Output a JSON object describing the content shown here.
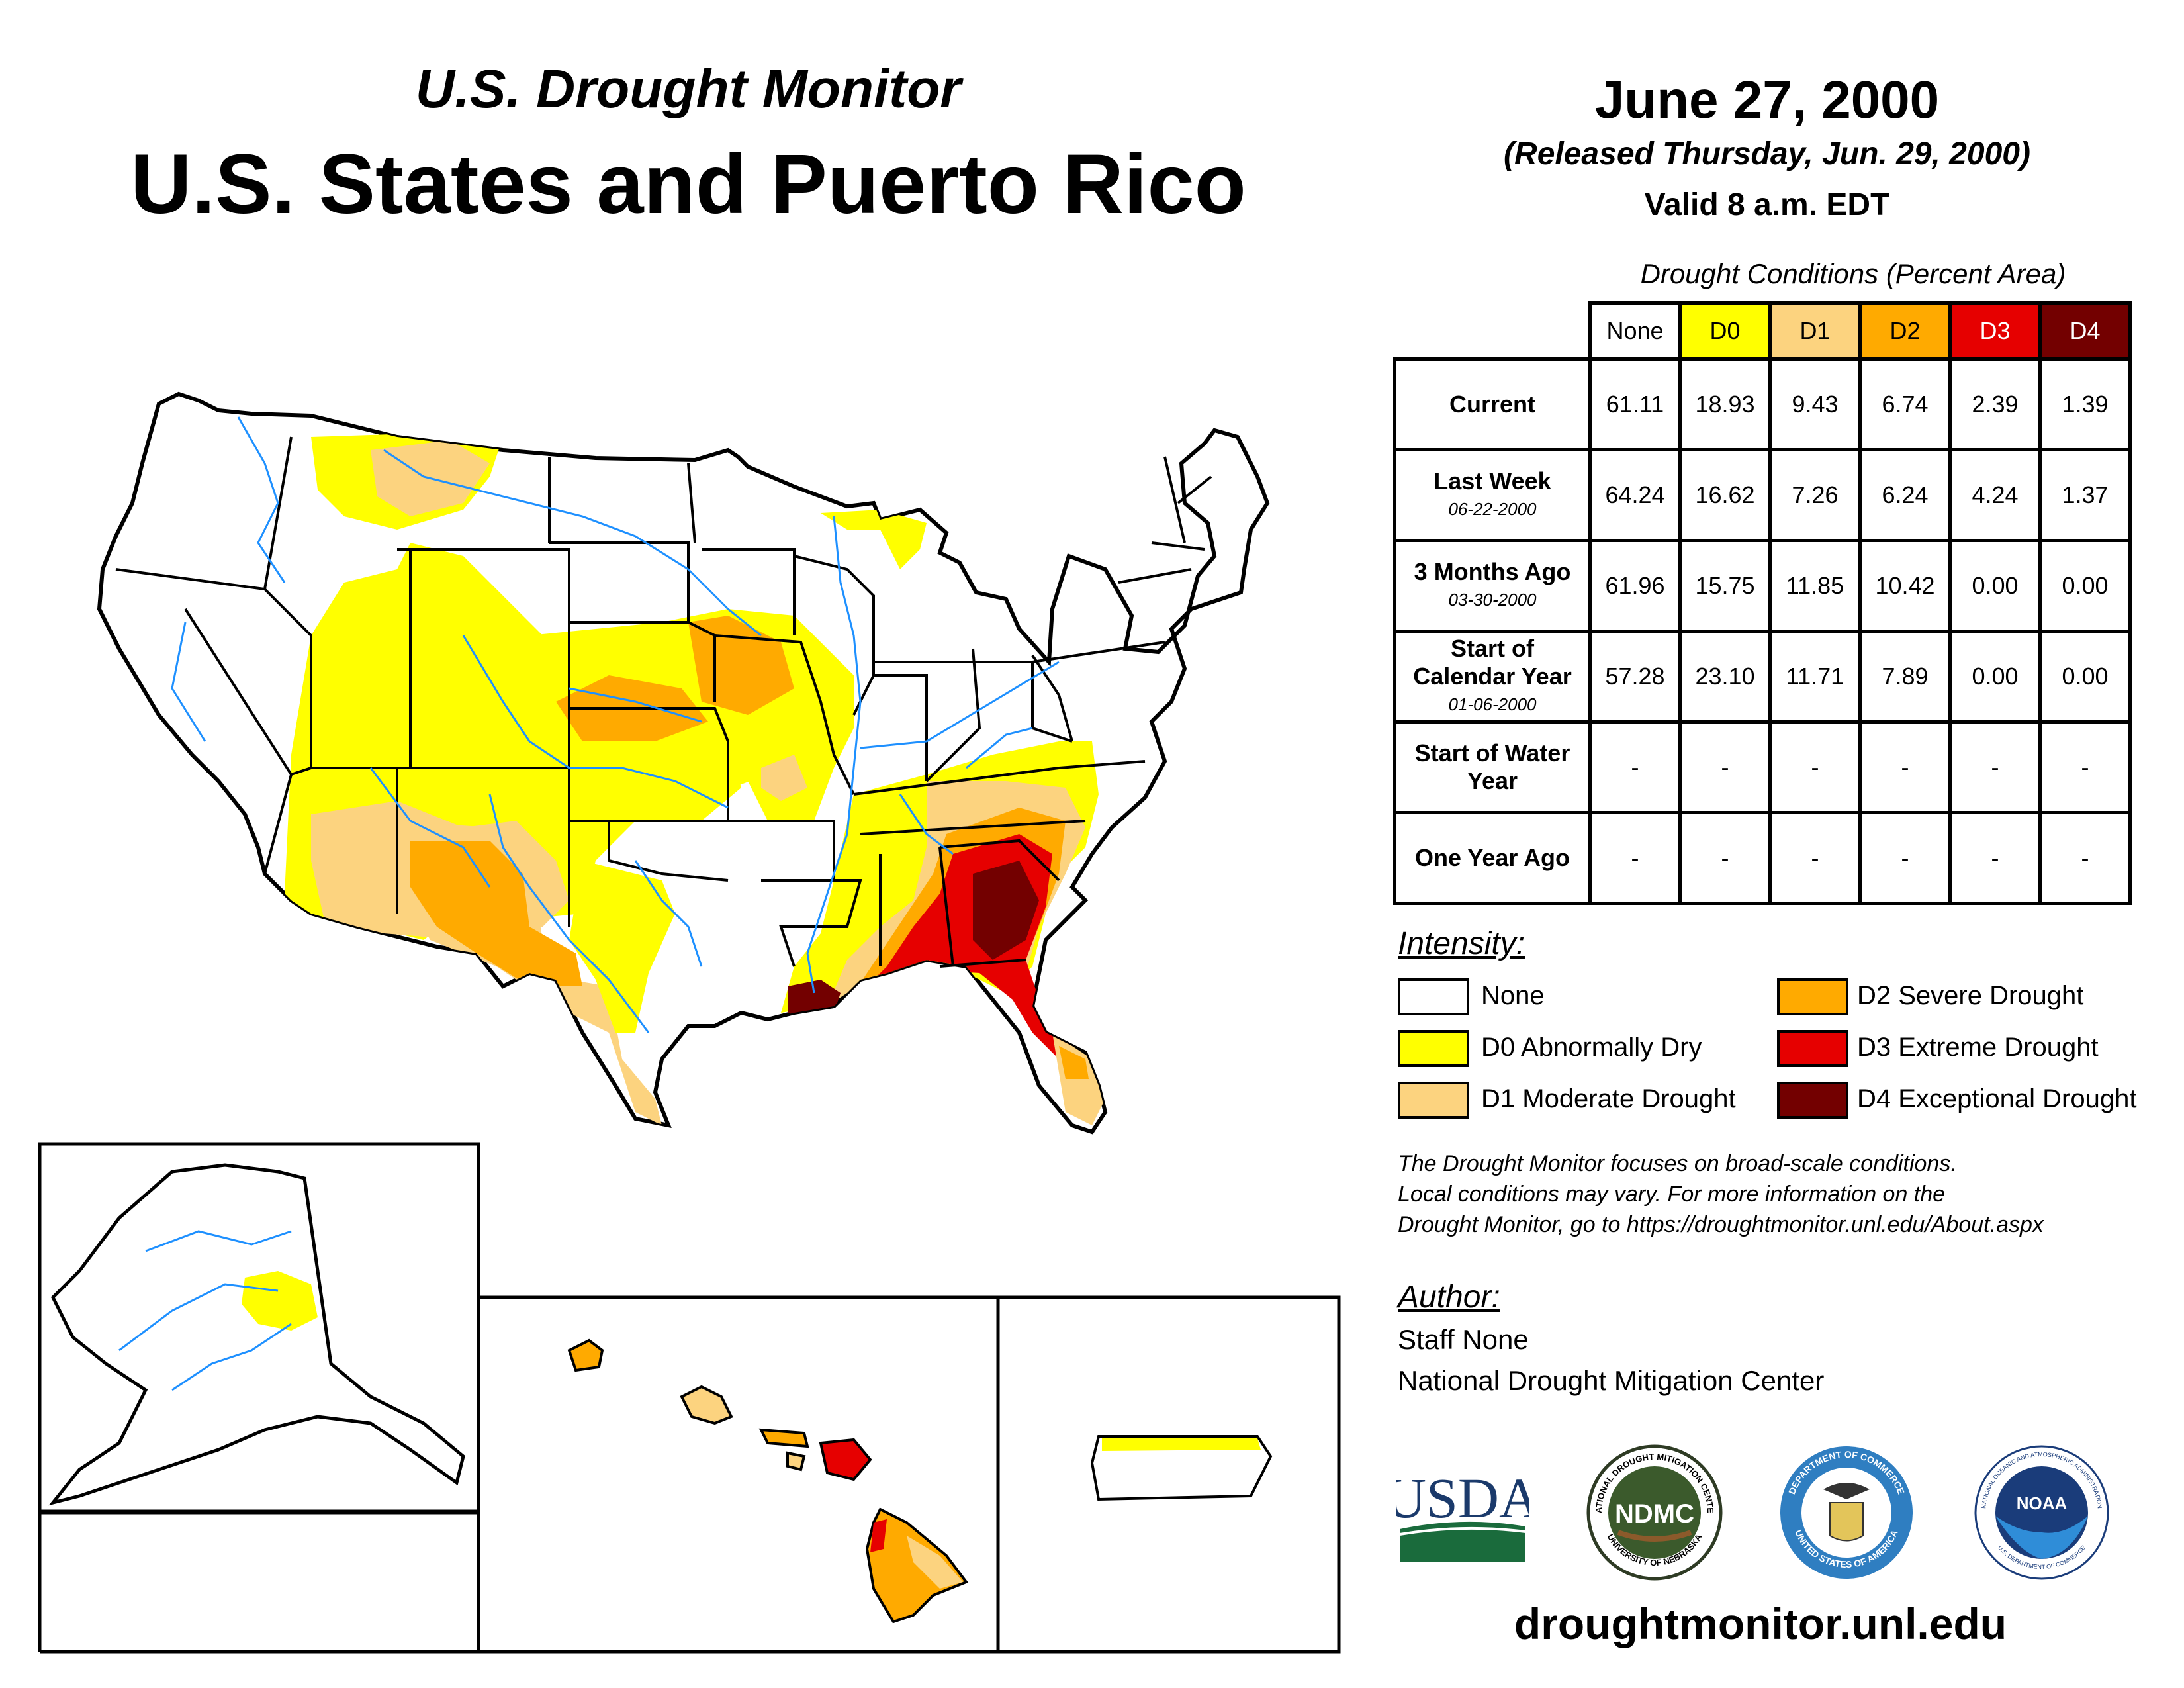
{
  "header": {
    "subtitle": "U.S. Drought Monitor",
    "title": "U.S. States and Puerto Rico",
    "date": "June 27, 2000",
    "released": "(Released Thursday, Jun. 29, 2000)",
    "valid": "Valid 8 a.m. EDT"
  },
  "table": {
    "caption": "Drought Conditions (Percent Area)",
    "columns": [
      "None",
      "D0",
      "D1",
      "D2",
      "D3",
      "D4"
    ],
    "column_colors": [
      "#ffffff",
      "#ffff00",
      "#fcd37f",
      "#ffaa00",
      "#e60000",
      "#730000"
    ],
    "rows": [
      {
        "label": "Current",
        "date": "",
        "values": [
          "61.11",
          "18.93",
          "9.43",
          "6.74",
          "2.39",
          "1.39"
        ]
      },
      {
        "label": "Last Week",
        "date": "06-22-2000",
        "values": [
          "64.24",
          "16.62",
          "7.26",
          "6.24",
          "4.24",
          "1.37"
        ]
      },
      {
        "label": "3 Months Ago",
        "date": "03-30-2000",
        "values": [
          "61.96",
          "15.75",
          "11.85",
          "10.42",
          "0.00",
          "0.00"
        ]
      },
      {
        "label": "Start of Calendar Year",
        "date": "01-06-2000",
        "values": [
          "57.28",
          "23.10",
          "11.71",
          "7.89",
          "0.00",
          "0.00"
        ]
      },
      {
        "label": "Start of Water Year",
        "date": "",
        "values": [
          "-",
          "-",
          "-",
          "-",
          "-",
          "-"
        ]
      },
      {
        "label": "One Year Ago",
        "date": "",
        "values": [
          "-",
          "-",
          "-",
          "-",
          "-",
          "-"
        ]
      }
    ]
  },
  "legend": {
    "title": "Intensity:",
    "items": [
      {
        "label": "None",
        "color": "#ffffff"
      },
      {
        "label": "D0 Abnormally Dry",
        "color": "#ffff00"
      },
      {
        "label": "D1 Moderate Drought",
        "color": "#fcd37f"
      },
      {
        "label": "D2 Severe Drought",
        "color": "#ffaa00"
      },
      {
        "label": "D3 Extreme Drought",
        "color": "#e60000"
      },
      {
        "label": "D4 Exceptional Drought",
        "color": "#730000"
      }
    ]
  },
  "note": {
    "line1": "The Drought Monitor focuses on broad-scale conditions.",
    "line2": "Local conditions may vary. For more information on the",
    "line3": "Drought Monitor, go to https://droughtmonitor.unl.edu/About.aspx"
  },
  "author": {
    "title": "Author:",
    "name": "Staff None",
    "org": "National Drought Mitigation Center"
  },
  "logos": {
    "usda": "USDA",
    "ndmc": "NDMC",
    "ndmc_ring_top": "NATIONAL DROUGHT MITIGATION CENTER",
    "ndmc_ring_bottom": "UNIVERSITY OF NEBRASKA",
    "commerce_ring_top": "DEPARTMENT OF COMMERCE",
    "commerce_ring_bottom": "UNITED STATES OF AMERICA",
    "noaa": "NOAA",
    "noaa_ring_top": "NATIONAL OCEANIC AND ATMOSPHERIC ADMINISTRATION",
    "noaa_ring_bottom": "U.S. DEPARTMENT OF COMMERCE"
  },
  "website": "droughtmonitor.unl.edu"
}
